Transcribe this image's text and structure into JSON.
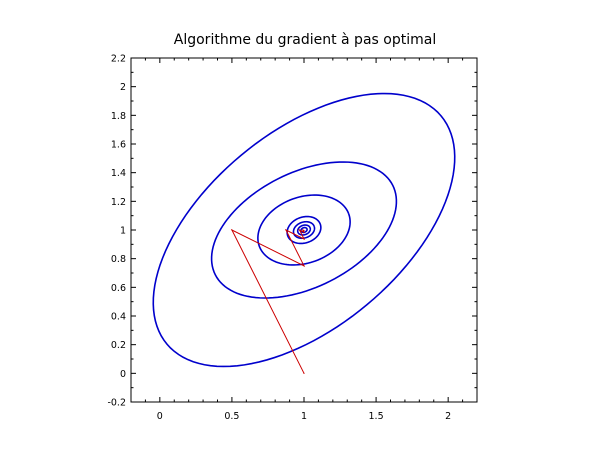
{
  "chart_data": {
    "type": "line",
    "title": "Algorithme du gradient à pas optimal",
    "xlabel": "",
    "ylabel": "",
    "xlim": [
      -0.2,
      2.2
    ],
    "ylim": [
      -0.2,
      2.2
    ],
    "x_ticks": [
      {
        "value": 0,
        "label": "0"
      },
      {
        "value": 0.5,
        "label": "0.5"
      },
      {
        "value": 1,
        "label": "1"
      },
      {
        "value": 1.5,
        "label": "1.5"
      },
      {
        "value": 2,
        "label": "2"
      }
    ],
    "y_ticks": [
      {
        "value": -0.2,
        "label": "-0.2"
      },
      {
        "value": 0,
        "label": "0"
      },
      {
        "value": 0.2,
        "label": "0.2"
      },
      {
        "value": 0.4,
        "label": "0.4"
      },
      {
        "value": 0.6,
        "label": "0.6"
      },
      {
        "value": 0.8,
        "label": "0.8"
      },
      {
        "value": 1,
        "label": "1"
      },
      {
        "value": 1.2,
        "label": "1.2"
      },
      {
        "value": 1.4,
        "label": "1.4"
      },
      {
        "value": 1.6,
        "label": "1.6"
      },
      {
        "value": 1.8,
        "label": "1.8"
      },
      {
        "value": 2,
        "label": "2"
      },
      {
        "value": 2.2,
        "label": "2.2"
      }
    ],
    "grid": false,
    "contours": {
      "color": "#0000cc",
      "center": [
        1,
        1
      ],
      "ellipses": [
        {
          "a": 1.24,
          "b": 0.68,
          "angle_deg": 40
        },
        {
          "a": 0.69,
          "b": 0.4,
          "angle_deg": 27
        },
        {
          "a": 0.33,
          "b": 0.23,
          "angle_deg": 20
        },
        {
          "a": 0.12,
          "b": 0.09,
          "angle_deg": 20
        },
        {
          "a": 0.075,
          "b": 0.055,
          "angle_deg": 20
        },
        {
          "a": 0.045,
          "b": 0.033,
          "angle_deg": 20
        },
        {
          "a": 0.022,
          "b": 0.016,
          "angle_deg": 20
        }
      ]
    },
    "series": [
      {
        "color": "#cc0000",
        "points": [
          {
            "x": 1.0,
            "y": 0.0
          },
          {
            "x": 0.5,
            "y": 1.0
          },
          {
            "x": 1.0,
            "y": 0.75
          },
          {
            "x": 0.875,
            "y": 1.0
          },
          {
            "x": 1.0,
            "y": 0.9375
          },
          {
            "x": 0.969,
            "y": 1.0
          },
          {
            "x": 1.0,
            "y": 0.984
          },
          {
            "x": 0.992,
            "y": 1.0
          },
          {
            "x": 1.0,
            "y": 0.996
          }
        ]
      }
    ]
  }
}
